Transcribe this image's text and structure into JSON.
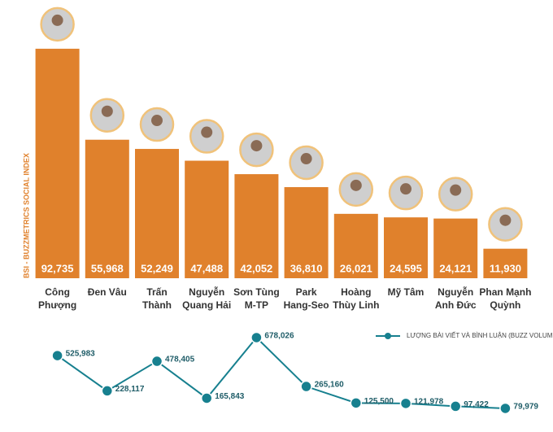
{
  "chart_data": [
    {
      "type": "bar",
      "ylabel": "BSI - BUZZMETRICS SOCIAL INDEX",
      "categories": [
        "Công\nPhượng",
        "Đen Vâu",
        "Trấn Thành",
        "Nguyễn\nQuang Hải",
        "Sơn Tùng\nM-TP",
        "Park\nHang-Seo",
        "Hoàng\nThùy Linh",
        "Mỹ Tâm",
        "Nguyễn\nAnh Đức",
        "Phan Mạnh\nQuỳnh"
      ],
      "values": [
        92735,
        55968,
        52249,
        47488,
        42052,
        36810,
        26021,
        24595,
        24121,
        11930
      ],
      "value_labels": [
        "92,735",
        "55,968",
        "52,249",
        "47,488",
        "42,052",
        "36,810",
        "26,021",
        "24,595",
        "24,121",
        "11,930"
      ],
      "color": "#e0812c",
      "ylim": [
        0,
        95000
      ]
    },
    {
      "type": "line",
      "categories": [
        null,
        null,
        null,
        null,
        null,
        null,
        null,
        null,
        null,
        null
      ],
      "series": [
        {
          "name": "LƯỢNG BÀI VIẾT VÀ BÌNH LUẬN (BUZZ VOLUME)",
          "color": "#17808f",
          "values": [
            525983,
            228117,
            478405,
            165843,
            678026,
            265160,
            125500,
            121978,
            97422,
            79979
          ],
          "value_labels": [
            "525,983",
            "228,117",
            "478,405",
            "165,843",
            "678,026",
            "265,160",
            "125,500",
            "121,978",
            "97,422",
            "79,979"
          ]
        }
      ],
      "ylim": [
        0,
        700000
      ]
    }
  ]
}
